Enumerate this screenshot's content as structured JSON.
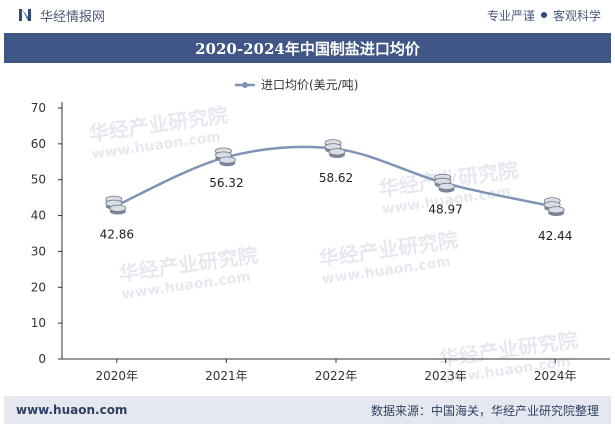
{
  "header": {
    "brand": "华经情报网",
    "tag1": "专业严谨",
    "tag2": "客观科学"
  },
  "title": "2020-2024年中国制盐进口均价",
  "watermark": "华经产业研究院",
  "watermark_url": "www.huaon.com",
  "footer": {
    "site": "www.huaon.com",
    "source": "数据来源：中国海关，华经产业研究院整理"
  },
  "colors": {
    "title_bg": "#3f5687",
    "line": "#7f93b4",
    "axis": "#333333",
    "footer_bg": "#e5e8ee"
  },
  "chart_data": {
    "type": "line",
    "categories": [
      "2020年",
      "2021年",
      "2022年",
      "2023年",
      "2024年"
    ],
    "series": [
      {
        "name": "进口均价(美元/吨)",
        "values": [
          42.86,
          56.32,
          58.62,
          48.97,
          42.44
        ]
      }
    ],
    "ylim": [
      0,
      70
    ],
    "yticks": [
      0,
      10,
      20,
      30,
      40,
      50,
      60,
      70
    ],
    "legend_position": "top-center",
    "grid": false,
    "marker": "coin-stack-icon"
  }
}
